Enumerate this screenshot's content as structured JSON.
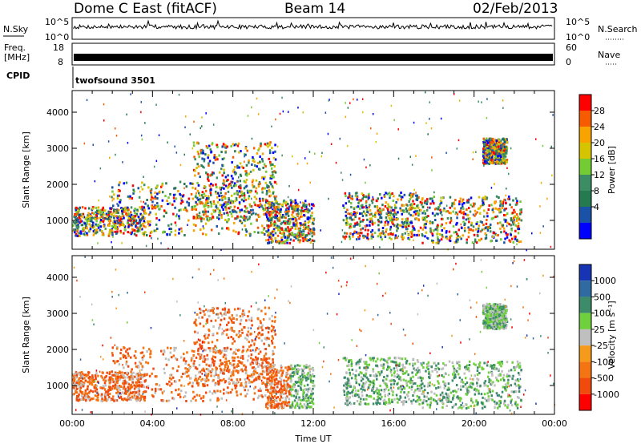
{
  "header": {
    "title": "Dome C East (fitACF)",
    "beam": "Beam 14",
    "date": "02/Feb/2013"
  },
  "panels": {
    "nsky": {
      "left_label": "N.Sky",
      "right_label": "N.Search",
      "ticks_left": [
        "10^5",
        "10^0"
      ],
      "ticks_right": [
        "10^5",
        "10^0"
      ]
    },
    "freq": {
      "left_label_1": "Freq.",
      "left_label_2": "[MHz]",
      "right_label": "Nave",
      "ticks_left": [
        "18",
        "8"
      ],
      "ticks_right": [
        "60",
        "0"
      ]
    },
    "cpid": {
      "label": "CPID",
      "value": "twofsound 3501"
    }
  },
  "chart_data": [
    {
      "type": "heatmap",
      "title": "",
      "ylabel": "Slant Range [km]",
      "xlabel": "",
      "x_ticks": [
        "00:00",
        "04:00",
        "08:00",
        "12:00",
        "16:00",
        "20:00",
        "00:00"
      ],
      "y_ticks": [
        1000,
        2000,
        3000,
        4000
      ],
      "ylim": [
        200,
        4600
      ],
      "xlim_hours": [
        0,
        24
      ],
      "colorbar": {
        "label": "Power [dB]",
        "ticks": [
          "28",
          "24",
          "20",
          "16",
          "12",
          "8",
          "4"
        ],
        "colors": [
          "#ff0000",
          "#f65b00",
          "#f9a300",
          "#d7c400",
          "#73cc34",
          "#3c8d63",
          "#267a50",
          "#1a52a8",
          "#0000ff"
        ]
      }
    },
    {
      "type": "heatmap",
      "title": "",
      "ylabel": "Slant Range [km]",
      "xlabel": "Time UT",
      "x_ticks": [
        "00:00",
        "04:00",
        "08:00",
        "12:00",
        "16:00",
        "20:00",
        "00:00"
      ],
      "y_ticks": [
        1000,
        2000,
        3000,
        4000
      ],
      "ylim": [
        200,
        4600
      ],
      "xlim_hours": [
        0,
        24
      ],
      "colorbar": {
        "label": "Velocity [m s⁻¹]",
        "ticks": [
          "1000",
          "500",
          "100",
          "25",
          "-25",
          "-100",
          "-500",
          "-1000"
        ],
        "colors": [
          "#1734b4",
          "#2f6aa0",
          "#3d8b6a",
          "#6fcf3d",
          "#bfbfbf",
          "#f59a1a",
          "#f47313",
          "#f04a0c",
          "#ff0000"
        ]
      }
    }
  ]
}
